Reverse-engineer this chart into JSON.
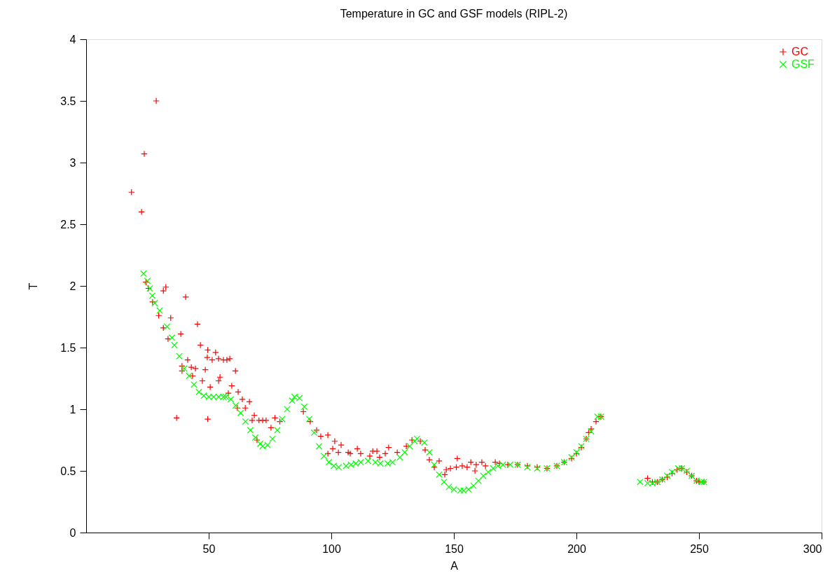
{
  "chart_data": {
    "type": "scatter",
    "title": "Temperature in GC and GSF models (RIPL-2)",
    "xlabel": "A",
    "ylabel": "T",
    "xlim": [
      0,
      300
    ],
    "xticks": [
      50,
      100,
      150,
      200,
      250,
      300
    ],
    "ylim": [
      0,
      4
    ],
    "yticks": [
      0,
      0.5,
      1,
      1.5,
      2,
      2.5,
      3,
      3.5,
      4
    ],
    "grid": false,
    "legend": "top right",
    "series": [
      {
        "name": "GC",
        "color": "#ff0000",
        "marker": "cross",
        "x": [
          18.5,
          22.6,
          23.7,
          28.6,
          24.4,
          25.4,
          27.1,
          29.6,
          31.5,
          32.5,
          31.5,
          33.4,
          34.5,
          36.9,
          38.6,
          39.1,
          39.1,
          40.6,
          41.4,
          42.9,
          43.4,
          44.6,
          45.4,
          46.6,
          47.4,
          48.6,
          49.4,
          49.6,
          49.6,
          50.6,
          51.4,
          52.8,
          54,
          54,
          54.6,
          56,
          57.4,
          58,
          58.6,
          59.4,
          60.9,
          61.7,
          62,
          63.7,
          64.9,
          66.6,
          67.7,
          68.6,
          69.7,
          70.5,
          72,
          73.4,
          75.4,
          77,
          79,
          88.6,
          91.4,
          94,
          95.7,
          98.6,
          98.6,
          100.6,
          101.4,
          102.9,
          104,
          106.9,
          107.7,
          110.6,
          112,
          115.7,
          116.9,
          118.6,
          119.7,
          122,
          123.4,
          126.9,
          130.6,
          132.9,
          136.3,
          138.3,
          140,
          142,
          144,
          146.3,
          146.9,
          148.6,
          151,
          151.4,
          153.4,
          155.4,
          156.9,
          158.6,
          159.1,
          161.4,
          162.9,
          166.9,
          168.6,
          172,
          176,
          180,
          184,
          188,
          192,
          195,
          198,
          200,
          202,
          204,
          205,
          206,
          208,
          210,
          229,
          231,
          233,
          235,
          237,
          239,
          241,
          243,
          245,
          247,
          249,
          250,
          252
        ],
        "values": [
          2.76,
          2.6,
          3.07,
          3.5,
          2.03,
          1.98,
          1.87,
          1.76,
          1.96,
          1.99,
          1.66,
          1.57,
          1.74,
          0.93,
          1.61,
          1.35,
          1.31,
          1.91,
          1.4,
          1.34,
          1.27,
          1.33,
          1.69,
          1.52,
          1.23,
          1.32,
          1.42,
          1.48,
          0.92,
          1.18,
          1.4,
          1.46,
          1.41,
          1.23,
          1.26,
          1.4,
          1.4,
          1.13,
          1.41,
          1.19,
          1.31,
          1.01,
          1.14,
          1.08,
          1.01,
          1.06,
          0.91,
          0.95,
          0.75,
          0.91,
          0.91,
          0.91,
          0.85,
          0.93,
          0.9,
          0.98,
          0.9,
          0.83,
          0.78,
          0.79,
          0.64,
          0.68,
          0.74,
          0.65,
          0.71,
          0.65,
          0.64,
          0.68,
          0.64,
          0.62,
          0.66,
          0.66,
          0.61,
          0.64,
          0.69,
          0.65,
          0.7,
          0.75,
          0.74,
          0.67,
          0.59,
          0.53,
          0.58,
          0.47,
          0.51,
          0.52,
          0.53,
          0.6,
          0.54,
          0.53,
          0.57,
          0.5,
          0.55,
          0.57,
          0.54,
          0.57,
          0.56,
          0.55,
          0.55,
          0.54,
          0.53,
          0.52,
          0.54,
          0.57,
          0.6,
          0.64,
          0.69,
          0.76,
          0.81,
          0.84,
          0.9,
          0.94,
          0.44,
          0.41,
          0.41,
          0.43,
          0.45,
          0.48,
          0.51,
          0.52,
          0.49,
          0.46,
          0.42,
          0.41,
          0.41
        ]
      },
      {
        "name": "GSF",
        "color": "#00ff00",
        "marker": "x",
        "x": [
          23.4,
          25,
          26,
          27,
          28,
          30,
          33,
          35,
          36,
          38,
          40,
          42,
          44,
          46,
          48,
          50,
          52,
          54,
          56,
          57,
          59,
          61,
          63,
          65,
          67,
          69,
          71,
          72,
          74,
          76,
          78,
          80,
          82,
          84,
          85,
          87,
          89,
          91,
          93,
          95,
          97,
          99,
          101,
          103,
          106,
          108,
          110,
          112,
          115,
          118,
          120,
          123,
          125,
          128,
          130,
          132,
          134,
          135,
          138,
          140,
          142,
          144,
          146,
          148,
          150,
          152.6,
          154,
          156,
          158,
          160,
          162,
          164,
          166,
          168,
          170,
          173,
          176,
          180,
          184,
          188,
          192,
          195,
          198,
          200,
          202,
          204,
          206,
          208.6,
          210,
          226,
          229,
          231,
          233,
          235,
          237,
          239,
          241.5,
          243,
          245,
          247,
          249,
          251,
          252
        ],
        "values": [
          2.1,
          2.04,
          1.98,
          1.92,
          1.86,
          1.8,
          1.67,
          1.58,
          1.52,
          1.43,
          1.33,
          1.27,
          1.2,
          1.14,
          1.11,
          1.1,
          1.1,
          1.1,
          1.1,
          1.1,
          1.08,
          1.03,
          0.97,
          0.9,
          0.83,
          0.77,
          0.72,
          0.7,
          0.71,
          0.76,
          0.83,
          0.92,
          1.0,
          1.07,
          1.1,
          1.09,
          1.02,
          0.92,
          0.81,
          0.7,
          0.62,
          0.57,
          0.54,
          0.53,
          0.54,
          0.55,
          0.56,
          0.57,
          0.58,
          0.57,
          0.56,
          0.56,
          0.57,
          0.61,
          0.65,
          0.7,
          0.74,
          0.76,
          0.73,
          0.65,
          0.55,
          0.47,
          0.41,
          0.37,
          0.35,
          0.34,
          0.34,
          0.35,
          0.38,
          0.42,
          0.46,
          0.49,
          0.52,
          0.54,
          0.55,
          0.55,
          0.55,
          0.53,
          0.52,
          0.52,
          0.54,
          0.57,
          0.61,
          0.65,
          0.7,
          0.76,
          0.82,
          0.94,
          0.94,
          0.41,
          0.4,
          0.4,
          0.41,
          0.43,
          0.46,
          0.49,
          0.52,
          0.52,
          0.5,
          0.46,
          0.42,
          0.41,
          0.41
        ]
      }
    ]
  }
}
